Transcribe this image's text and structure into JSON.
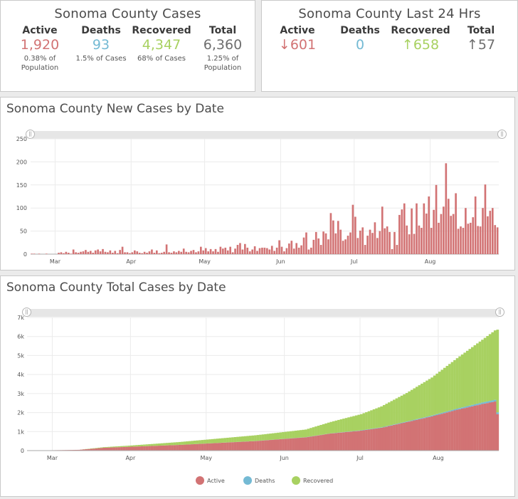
{
  "cases_card": {
    "title": "Sonoma County Cases",
    "active": {
      "label": "Active",
      "value": "1,920",
      "sub1": "0.38% of",
      "sub2": "Population"
    },
    "deaths": {
      "label": "Deaths",
      "value": "93",
      "sub1": "1.5% of Cases"
    },
    "recovered": {
      "label": "Recovered",
      "value": "4,347",
      "sub1": "68% of Cases"
    },
    "total": {
      "label": "Total",
      "value": "6,360",
      "sub1": "1.25% of",
      "sub2": "Population"
    }
  },
  "last24_card": {
    "title": "Sonoma County Last 24 Hrs",
    "active": {
      "label": "Active",
      "value": "↓601"
    },
    "deaths": {
      "label": "Deaths",
      "value": "0"
    },
    "recovered": {
      "label": "Recovered",
      "value": "↑658"
    },
    "total": {
      "label": "Total",
      "value": "↑57"
    }
  },
  "colors": {
    "active": "#d27374",
    "deaths": "#74bad4",
    "recovered": "#a8d161",
    "total": "#6e6e6e"
  },
  "chart_data": [
    {
      "type": "bar",
      "title": "Sonoma County New Cases by Date",
      "ylim": [
        0,
        250
      ],
      "y_ticks": [
        "0",
        "50",
        "100",
        "150",
        "200",
        "250"
      ],
      "x_tick_labels": [
        "Mar",
        "Apr",
        "May",
        "Jun",
        "Jul",
        "Aug"
      ],
      "x_tick_index": [
        10,
        41,
        71,
        102,
        132,
        163
      ],
      "grid": true,
      "series": [
        {
          "color": "#d27374",
          "values": [
            1,
            1,
            0,
            1,
            0,
            0,
            1,
            0,
            0,
            0,
            0,
            3,
            4,
            2,
            5,
            3,
            1,
            10,
            4,
            3,
            5,
            6,
            9,
            5,
            7,
            3,
            8,
            10,
            6,
            11,
            5,
            4,
            8,
            3,
            7,
            2,
            9,
            16,
            4,
            4,
            2,
            4,
            8,
            6,
            3,
            2,
            5,
            3,
            6,
            10,
            3,
            8,
            2,
            3,
            5,
            21,
            4,
            3,
            6,
            4,
            7,
            5,
            12,
            5,
            4,
            7,
            9,
            4,
            6,
            16,
            8,
            13,
            6,
            11,
            6,
            11,
            5,
            16,
            12,
            14,
            8,
            16,
            4,
            12,
            20,
            24,
            10,
            22,
            14,
            6,
            10,
            17,
            7,
            13,
            14,
            14,
            13,
            10,
            18,
            7,
            14,
            30,
            16,
            6,
            13,
            23,
            29,
            12,
            24,
            14,
            19,
            36,
            47,
            10,
            14,
            31,
            48,
            34,
            20,
            49,
            45,
            32,
            89,
            73,
            45,
            72,
            53,
            29,
            32,
            40,
            47,
            107,
            81,
            35,
            51,
            58,
            20,
            40,
            53,
            46,
            69,
            35,
            50,
            103,
            56,
            60,
            48,
            11,
            48,
            20,
            85,
            97,
            110,
            62,
            43,
            99,
            44,
            110,
            62,
            57,
            110,
            88,
            125,
            57,
            96,
            150,
            68,
            87,
            103,
            197,
            120,
            83,
            87,
            132,
            55,
            60,
            57,
            100,
            66,
            68,
            80,
            125,
            61,
            60,
            100,
            151,
            82,
            94,
            100,
            63,
            58
          ]
        }
      ]
    },
    {
      "type": "bar",
      "stacked": true,
      "title": "Sonoma County Total Cases by Date",
      "ylim": [
        0,
        7000
      ],
      "y_ticks": [
        "0",
        "1k",
        "2k",
        "3k",
        "4k",
        "5k",
        "6k",
        "7k"
      ],
      "x_tick_labels": [
        "Mar",
        "Apr",
        "May",
        "Jun",
        "Jul",
        "Aug"
      ],
      "x_tick_index": [
        10,
        41,
        71,
        102,
        132,
        163
      ],
      "grid": true,
      "legend_position": "bottom",
      "series": [
        {
          "name": "Active",
          "color": "#d27374",
          "anchors": [
            [
              0,
              1
            ],
            [
              20,
              40
            ],
            [
              30,
              150
            ],
            [
              60,
              300
            ],
            [
              90,
              500
            ],
            [
              110,
              700
            ],
            [
              120,
              900
            ],
            [
              132,
              1050
            ],
            [
              140,
              1200
            ],
            [
              150,
              1500
            ],
            [
              160,
              1800
            ],
            [
              170,
              2150
            ],
            [
              180,
              2450
            ],
            [
              185,
              2580
            ],
            [
              186,
              1920
            ]
          ]
        },
        {
          "name": "Deaths",
          "color": "#74bad4",
          "anchors": [
            [
              0,
              0
            ],
            [
              50,
              1
            ],
            [
              90,
              5
            ],
            [
              120,
              10
            ],
            [
              150,
              30
            ],
            [
              170,
              60
            ],
            [
              186,
              93
            ]
          ]
        },
        {
          "name": "Recovered",
          "color": "#a8d161",
          "anchors": [
            [
              0,
              0
            ],
            [
              20,
              0
            ],
            [
              40,
              60
            ],
            [
              60,
              150
            ],
            [
              90,
              300
            ],
            [
              110,
              400
            ],
            [
              120,
              600
            ],
            [
              132,
              850
            ],
            [
              140,
              1100
            ],
            [
              150,
              1500
            ],
            [
              160,
              2000
            ],
            [
              170,
              2650
            ],
            [
              180,
              3300
            ],
            [
              185,
              3650
            ],
            [
              186,
              4347
            ]
          ]
        }
      ]
    }
  ]
}
